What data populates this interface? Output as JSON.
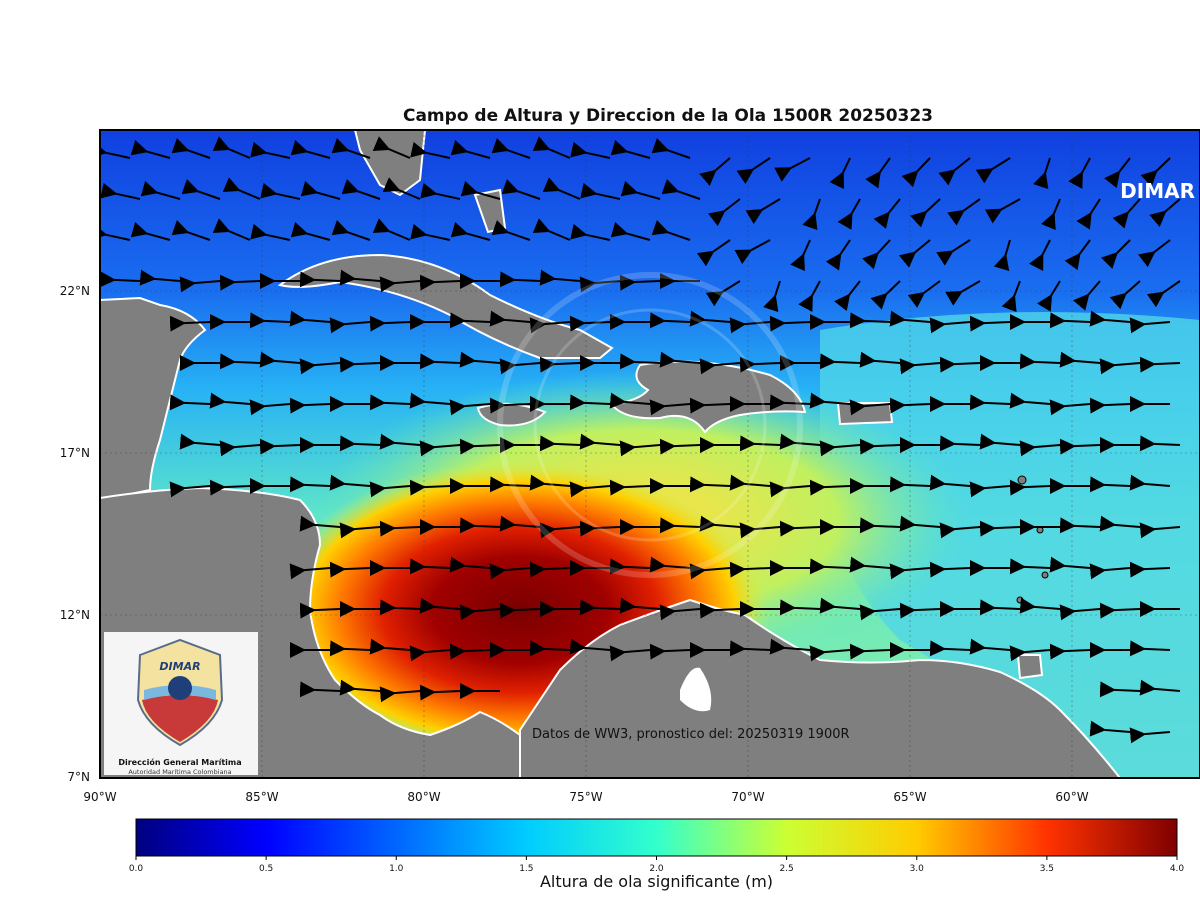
{
  "title": "Campo de Altura y Direccion de la Ola 1500R 20250323",
  "watermark_text": "DIMAR",
  "forecast_note": "Datos de WW3, pronostico del: 20250319 1900R",
  "lat_ticks": [
    "22°N",
    "17°N",
    "12°N",
    "7°N"
  ],
  "lon_ticks": [
    "90°W",
    "85°W",
    "80°W",
    "75°W",
    "70°W",
    "65°W",
    "60°W"
  ],
  "colorbar": {
    "label": "Altura de ola significante (m)",
    "ticks": [
      "0.0",
      "0.5",
      "1.0",
      "1.5",
      "2.0",
      "2.5",
      "3.0",
      "3.5",
      "4.0"
    ],
    "min": 0.0,
    "max": 4.0,
    "colormap": "jet"
  },
  "logo": {
    "text": "DIMAR",
    "org_name": "Dirección General Marítima",
    "org_subtitle": "Autoridad Marítima Colombiana"
  },
  "map_extent": {
    "lon_min": -90,
    "lon_max": -56,
    "lat_min": 7,
    "lat_max": 27
  },
  "colors": {
    "land": "#7f7f7f",
    "coast": "#ffffff",
    "arrow": "#000000"
  }
}
